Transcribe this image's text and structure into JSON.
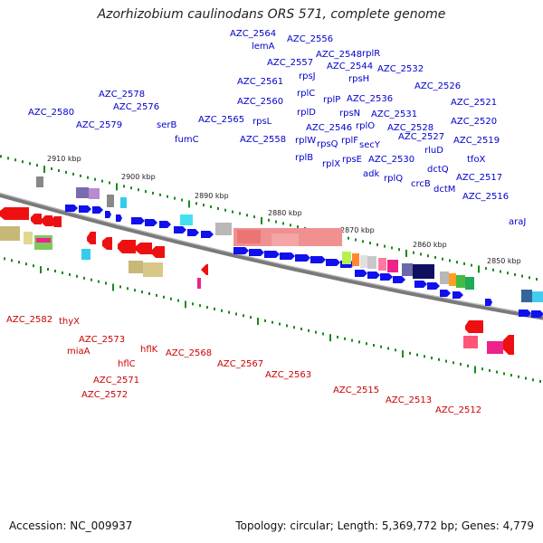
{
  "title": "Azorhizobium caulinodans ORS 571, complete genome",
  "footer": {
    "accession": "Accession: NC_009937",
    "topology": "Topology: circular; Length: 5,369,772 bp; Genes: 4,779"
  },
  "colors": {
    "forward_gene": "#1010ee",
    "reverse_gene": "#ee1010",
    "forward_label": "#0000cc",
    "reverse_label": "#cc0000",
    "backbone": "#7a7a7a",
    "tick": "#1a8a1a"
  },
  "kbp_labels": [
    "2910 kbp",
    "2900 kbp",
    "2890 kbp",
    "2880 kbp",
    "2870 kbp",
    "2860 kbp",
    "2850 kbp"
  ],
  "top_labels": [
    "AZC_2580",
    "AZC_2578",
    "AZC_2579",
    "AZC_2576",
    "serB",
    "fumC",
    "AZC_2565",
    "AZC_2564",
    "lemA",
    "AZC_2557",
    "AZC_2561",
    "AZC_2560",
    "rpsL",
    "AZC_2558",
    "AZC_2556",
    "rpsJ",
    "rplC",
    "rplD",
    "rplW",
    "rplB",
    "AZC_2548",
    "AZC_2544",
    "rplR",
    "rpsH",
    "rplP",
    "AZC_2546",
    "rpsQ",
    "rplX",
    "rpsN",
    "rplF",
    "rpsE",
    "AZC_2536",
    "rplO",
    "secY",
    "adk",
    "AZC_2532",
    "AZC_2531",
    "AZC_2530",
    "rplQ",
    "AZC_2528",
    "AZC_2527",
    "crcB",
    "AZC_2526",
    "rluD",
    "dctQ",
    "dctM",
    "AZC_2521",
    "AZC_2520",
    "AZC_2519",
    "tfoX",
    "AZC_2517",
    "AZC_2516",
    "araJ"
  ],
  "bottom_labels": [
    "AZC_2582",
    "thyX",
    "miaA",
    "AZC_2573",
    "hflC",
    "AZC_2571",
    "AZC_2572",
    "hflK",
    "AZC_2568",
    "AZC_2567",
    "AZC_2563",
    "AZC_2515",
    "AZC_2513",
    "AZC_2512"
  ]
}
